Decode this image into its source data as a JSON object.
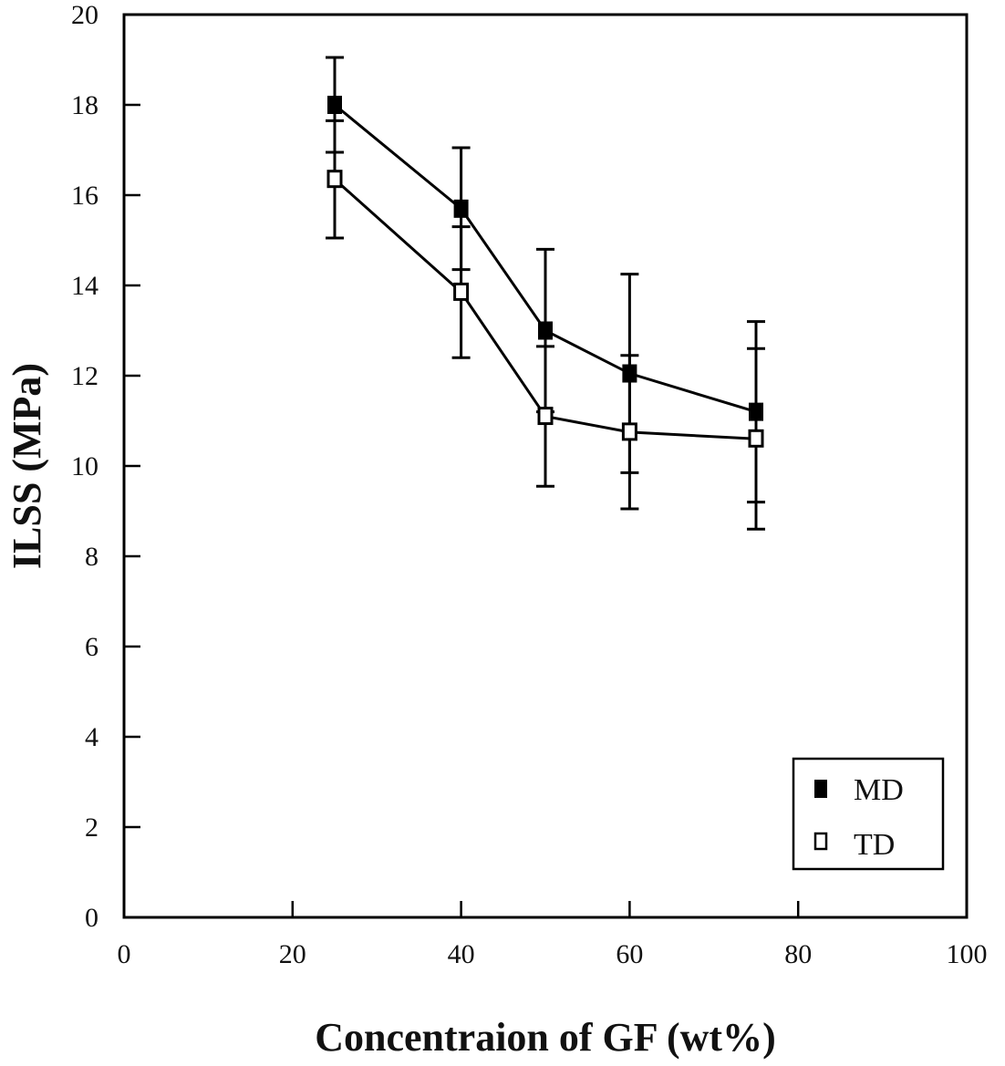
{
  "chart_data": {
    "type": "line",
    "title": "",
    "xlabel": "Concentraion of GF (wt%)",
    "ylabel": "ILSS (MPa)",
    "xlim": [
      0,
      100
    ],
    "ylim": [
      0,
      20
    ],
    "xticks": [
      0,
      20,
      40,
      60,
      80,
      100
    ],
    "yticks": [
      0,
      2,
      4,
      6,
      8,
      10,
      12,
      14,
      16,
      18,
      20
    ],
    "grid": false,
    "legend_position": "bottom-right",
    "x": [
      25,
      40,
      50,
      60,
      75
    ],
    "series": [
      {
        "name": "MD",
        "marker": "filled-square",
        "values": [
          18.0,
          15.7,
          13.0,
          12.05,
          11.2
        ],
        "error": [
          1.05,
          1.35,
          1.8,
          2.2,
          2.0
        ]
      },
      {
        "name": "TD",
        "marker": "open-square",
        "values": [
          16.35,
          13.85,
          11.1,
          10.75,
          10.6
        ],
        "error": [
          1.3,
          1.45,
          1.55,
          1.7,
          2.0
        ]
      }
    ]
  }
}
